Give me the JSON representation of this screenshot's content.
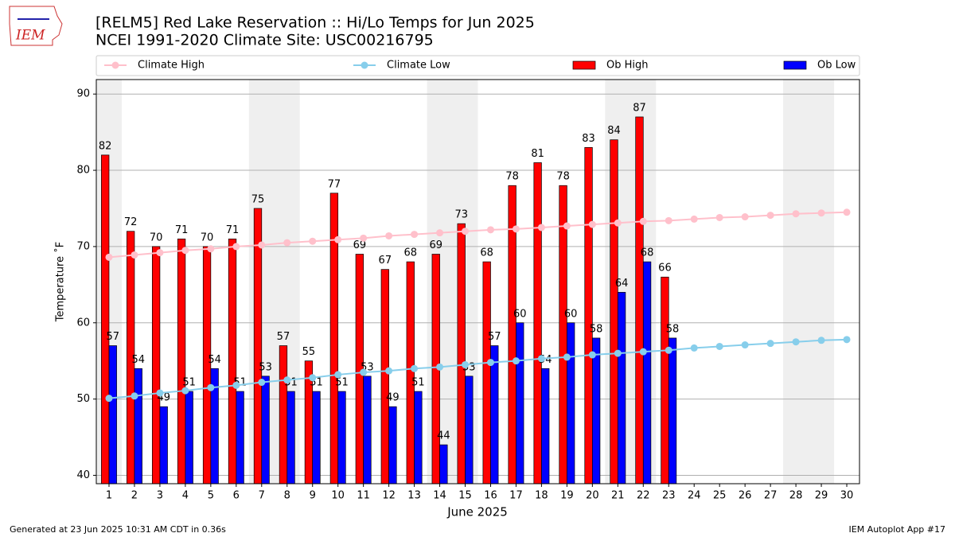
{
  "chart_data": {
    "type": "bar",
    "title": "[RELM5] Red Lake Reservation :: Hi/Lo Temps for Jun 2025",
    "subtitle": "NCEI 1991-2020 Climate Site: USC00216795",
    "logo": "IEM",
    "xlabel": "June 2025",
    "ylabel": "Temperature ˚F",
    "footer_left": "Generated at 23 Jun 2025 10:31 AM CDT in 0.36s",
    "footer_right": "IEM Autoplot App #17",
    "x": [
      1,
      2,
      3,
      4,
      5,
      6,
      7,
      8,
      9,
      10,
      11,
      12,
      13,
      14,
      15,
      16,
      17,
      18,
      19,
      20,
      21,
      22,
      23,
      24,
      25,
      26,
      27,
      28,
      29,
      30
    ],
    "xlim": [
      0.5,
      30.5
    ],
    "xticks": [
      1,
      2,
      3,
      4,
      5,
      6,
      7,
      8,
      9,
      10,
      11,
      12,
      13,
      14,
      15,
      16,
      17,
      18,
      19,
      20,
      21,
      22,
      23,
      24,
      25,
      26,
      27,
      28,
      29,
      30
    ],
    "ylim": [
      38.9,
      91.9
    ],
    "yticks": [
      40,
      50,
      60,
      70,
      80,
      90
    ],
    "grid": true,
    "legend": "top",
    "series": [
      {
        "name": "Climate High",
        "type": "line",
        "color": "#ffc0cb",
        "values": [
          68.6,
          68.9,
          69.2,
          69.5,
          69.7,
          70.0,
          70.2,
          70.5,
          70.7,
          70.9,
          71.1,
          71.4,
          71.6,
          71.8,
          72.0,
          72.2,
          72.3,
          72.5,
          72.7,
          72.9,
          73.1,
          73.3,
          73.4,
          73.6,
          73.8,
          73.9,
          74.1,
          74.3,
          74.4,
          74.5
        ]
      },
      {
        "name": "Climate Low",
        "type": "line",
        "color": "#87ceeb",
        "values": [
          50.1,
          50.4,
          50.8,
          51.1,
          51.5,
          51.8,
          52.2,
          52.5,
          52.8,
          53.2,
          53.5,
          53.7,
          54.0,
          54.2,
          54.5,
          54.8,
          55.0,
          55.3,
          55.5,
          55.8,
          56.0,
          56.2,
          56.4,
          56.7,
          56.9,
          57.1,
          57.3,
          57.5,
          57.7,
          57.8
        ]
      },
      {
        "name": "Ob High",
        "type": "bar",
        "color": "#ff0000",
        "values": [
          82,
          72,
          70,
          71,
          70,
          71,
          75,
          57,
          55,
          77,
          69,
          67,
          68,
          69,
          73,
          68,
          78,
          81,
          78,
          83,
          84,
          87,
          66,
          null,
          null,
          null,
          null,
          null,
          null,
          null
        ]
      },
      {
        "name": "Ob Low",
        "type": "bar",
        "color": "#0000ff",
        "values": [
          57,
          54,
          49,
          51,
          54,
          51,
          53,
          51,
          51,
          51,
          53,
          49,
          51,
          44,
          53,
          57,
          60,
          54,
          60,
          58,
          64,
          68,
          58,
          null,
          null,
          null,
          null,
          null,
          null,
          null
        ]
      }
    ]
  }
}
